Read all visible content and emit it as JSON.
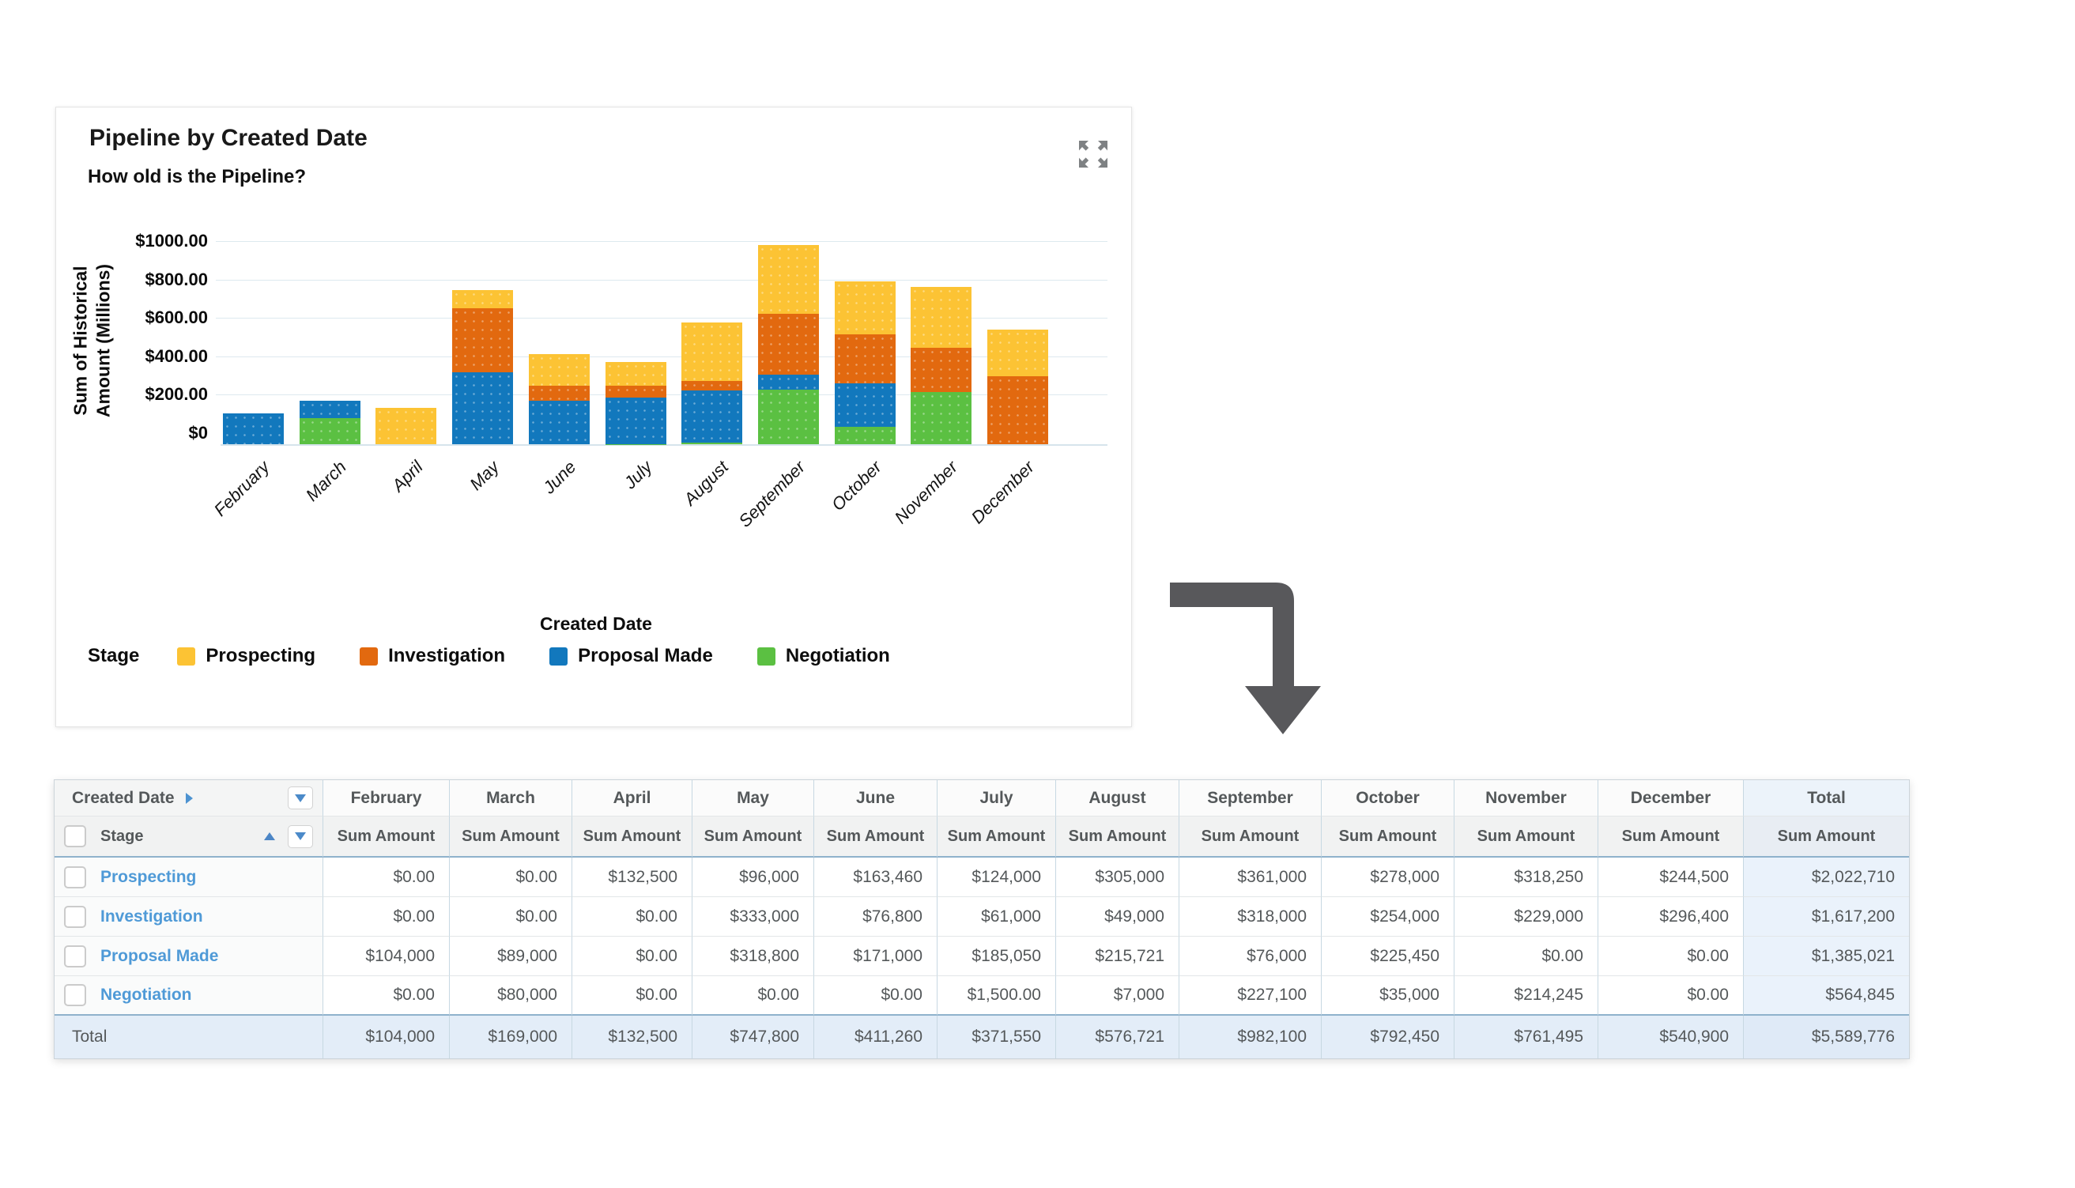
{
  "chart": {
    "title": "Pipeline by Created Date",
    "subtitle": "How old is the Pipeline?",
    "y_axis_title_lines": [
      "Sum of Historical",
      "Amount (Millions)"
    ],
    "x_axis_title": "Created Date",
    "legend_title": "Stage",
    "y_ticks": [
      {
        "label": "$1000.00",
        "value": 1000
      },
      {
        "label": "$800.00",
        "value": 800
      },
      {
        "label": "$600.00",
        "value": 600
      },
      {
        "label": "$400.00",
        "value": 400
      },
      {
        "label": "$200.00",
        "value": 200
      },
      {
        "label": "$0",
        "value": 0
      }
    ]
  },
  "chart_data": {
    "type": "bar",
    "stacked": true,
    "title": "Pipeline by Created Date",
    "xlabel": "Created Date",
    "ylabel": "Sum of Historical Amount (Millions)",
    "ylim": [
      0,
      1000
    ],
    "grid": true,
    "legend_position": "bottom",
    "axis_note": "values in dollars; axis ticks represent $ thousands",
    "categories": [
      "February",
      "March",
      "April",
      "May",
      "June",
      "July",
      "August",
      "September",
      "October",
      "November",
      "December"
    ],
    "series": [
      {
        "name": "Negotiation",
        "color": "#5bc042",
        "values": [
          0,
          80000,
          0,
          0,
          0,
          1500,
          7000,
          227100,
          35000,
          214245,
          0
        ]
      },
      {
        "name": "Proposal Made",
        "color": "#1278bd",
        "values": [
          104000,
          89000,
          0,
          318800,
          171000,
          185050,
          215721,
          76000,
          225450,
          0,
          0
        ]
      },
      {
        "name": "Investigation",
        "color": "#e2690f",
        "values": [
          0,
          0,
          0,
          333000,
          76800,
          61000,
          49000,
          318000,
          254000,
          229000,
          296400
        ]
      },
      {
        "name": "Prospecting",
        "color": "#fcc334",
        "values": [
          0,
          0,
          132500,
          96000,
          163460,
          124000,
          305000,
          361000,
          278000,
          318250,
          244500
        ]
      }
    ],
    "legend_order": [
      "Prospecting",
      "Investigation",
      "Proposal Made",
      "Negotiation"
    ]
  },
  "table": {
    "corner_header": "Created Date",
    "row_dimension": "Stage",
    "value_header": "Sum Amount",
    "columns": [
      "February",
      "March",
      "April",
      "May",
      "June",
      "July",
      "August",
      "September",
      "October",
      "November",
      "December",
      "Total"
    ],
    "rows": [
      {
        "label": "Prospecting",
        "values": [
          "$0.00",
          "$0.00",
          "$132,500",
          "$96,000",
          "$163,460",
          "$124,000",
          "$305,000",
          "$361,000",
          "$278,000",
          "$318,250",
          "$244,500",
          "$2,022,710"
        ]
      },
      {
        "label": "Investigation",
        "values": [
          "$0.00",
          "$0.00",
          "$0.00",
          "$333,000",
          "$76,800",
          "$61,000",
          "$49,000",
          "$318,000",
          "$254,000",
          "$229,000",
          "$296,400",
          "$1,617,200"
        ]
      },
      {
        "label": "Proposal Made",
        "values": [
          "$104,000",
          "$89,000",
          "$0.00",
          "$318,800",
          "$171,000",
          "$185,050",
          "$215,721",
          "$76,000",
          "$225,450",
          "$0.00",
          "$0.00",
          "$1,385,021"
        ]
      },
      {
        "label": "Negotiation",
        "values": [
          "$0.00",
          "$80,000",
          "$0.00",
          "$0.00",
          "$0.00",
          "$1,500.00",
          "$7,000",
          "$227,100",
          "$35,000",
          "$214,245",
          "$0.00",
          "$564,845"
        ]
      }
    ],
    "total_row": {
      "label": "Total",
      "values": [
        "$104,000",
        "$169,000",
        "$132,500",
        "$747,800",
        "$411,260",
        "$371,550",
        "$576,721",
        "$982,100",
        "$792,450",
        "$761,495",
        "$540,900",
        "$5,589,776"
      ]
    }
  },
  "colors": {
    "arrow_gray": "#58585b",
    "link_blue": "#4f9ad7",
    "icon_gray": "#7e8183",
    "gridline": "#dde9ef"
  }
}
